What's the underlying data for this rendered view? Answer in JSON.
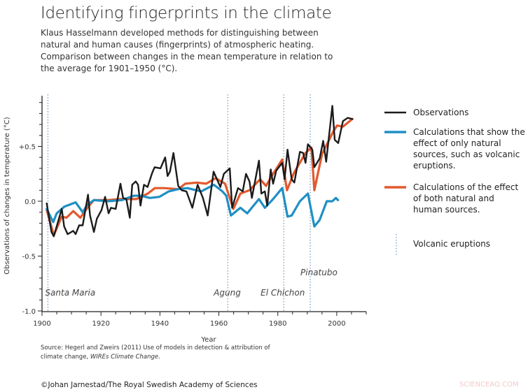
{
  "header": {
    "title": "Identifying fingerprints in the climate",
    "subtitle": "Klaus Hasselmann developed methods for distinguishing between natural and human causes (fingerprints) of atmospheric heating. Comparison between changes in the mean temperature in relation to the average for 1901–1950 (°C)."
  },
  "chart_data": {
    "type": "line",
    "title": "Identifying fingerprints in the climate",
    "xlabel": "Year",
    "ylabel": "Observations of changes in temperature (°C)",
    "xlim": [
      1900,
      2010
    ],
    "ylim": [
      -1.0,
      0.9
    ],
    "x_ticks": [
      1900,
      1920,
      1940,
      1960,
      1980,
      2000
    ],
    "x_tick_labels": [
      "1900",
      "1920",
      "1940",
      "1960",
      "1980",
      "2000"
    ],
    "y_ticks": [
      -1.0,
      -0.5,
      0.0,
      0.5
    ],
    "y_tick_labels": [
      "-1.0",
      "-0.5",
      "0.0",
      "+0.5"
    ],
    "grid": false,
    "legend_position": "right",
    "series": [
      {
        "name": "Observations",
        "color": "#1b1b1b",
        "x": [
          1901.6,
          1903.2,
          1904.0,
          1906.7,
          1907.5,
          1908.7,
          1910.6,
          1911.4,
          1912.6,
          1913.8,
          1915.6,
          1916.3,
          1917.6,
          1918.6,
          1920.2,
          1921.4,
          1922.6,
          1923.4,
          1925.0,
          1926.6,
          1927.5,
          1928.6,
          1929.8,
          1930.6,
          1931.8,
          1932.6,
          1933.4,
          1934.6,
          1935.8,
          1937.4,
          1938.2,
          1940.2,
          1941.8,
          1942.6,
          1943.4,
          1944.6,
          1946.2,
          1947.4,
          1949.0,
          1951.0,
          1952.8,
          1954.6,
          1956.2,
          1958.2,
          1960.5,
          1961.7,
          1963.7,
          1964.5,
          1966.5,
          1968.1,
          1969.2,
          1970.4,
          1971.2,
          1973.6,
          1974.4,
          1975.6,
          1976.4,
          1977.6,
          1978.4,
          1979.5,
          1981.5,
          1982.3,
          1983.3,
          1984.7,
          1985.6,
          1987.5,
          1988.6,
          1989.4,
          1990.2,
          1991.7,
          1992.4,
          1994.2,
          1995.4,
          1996.4,
          1998.5,
          1999.3,
          2000.5,
          2002.1,
          2003.7,
          2005.3
        ],
        "y": [
          -0.02,
          -0.28,
          -0.32,
          -0.07,
          -0.23,
          -0.3,
          -0.27,
          -0.3,
          -0.22,
          -0.22,
          0.06,
          -0.13,
          -0.28,
          -0.16,
          -0.08,
          0.04,
          -0.11,
          -0.06,
          -0.07,
          0.16,
          0.03,
          0.02,
          -0.15,
          0.15,
          0.18,
          0.15,
          -0.04,
          0.15,
          0.13,
          0.26,
          0.31,
          0.3,
          0.4,
          0.23,
          0.27,
          0.44,
          0.14,
          0.1,
          0.09,
          -0.06,
          0.15,
          0.03,
          -0.13,
          0.27,
          0.13,
          0.25,
          0.3,
          -0.06,
          0.12,
          0.09,
          0.25,
          0.18,
          0.03,
          0.37,
          0.07,
          0.09,
          -0.04,
          0.29,
          0.16,
          0.28,
          0.35,
          0.2,
          0.47,
          0.2,
          0.17,
          0.45,
          0.44,
          0.35,
          0.52,
          0.47,
          0.31,
          0.39,
          0.55,
          0.36,
          0.87,
          0.56,
          0.53,
          0.73,
          0.76,
          0.75
        ]
      },
      {
        "name": "Calculations that show the effect of only natural sources, such as volcanic eruptions.",
        "color": "#1f8fc4",
        "x": [
          1901.6,
          1903.8,
          1905.0,
          1907.5,
          1911.4,
          1913.8,
          1915.4,
          1917.6,
          1922.4,
          1927.1,
          1931.1,
          1933.5,
          1936.6,
          1939.8,
          1943.0,
          1946.2,
          1949.3,
          1954.0,
          1958.3,
          1961.2,
          1962.5,
          1964.1,
          1967.3,
          1969.6,
          1973.6,
          1975.6,
          1978.4,
          1981.5,
          1983.3,
          1984.7,
          1987.5,
          1990.2,
          1992.4,
          1994.2,
          1996.6,
          1998.5,
          1999.7,
          2000.4
        ],
        "y": [
          -0.07,
          -0.19,
          -0.11,
          -0.05,
          -0.01,
          -0.1,
          -0.03,
          0.01,
          0.0,
          0.01,
          0.05,
          0.05,
          0.03,
          0.04,
          0.09,
          0.11,
          0.12,
          0.09,
          0.15,
          0.09,
          0.05,
          -0.13,
          -0.06,
          -0.11,
          0.02,
          -0.06,
          0.02,
          0.12,
          -0.14,
          -0.13,
          0.0,
          0.07,
          -0.23,
          -0.17,
          0.0,
          0.0,
          0.03,
          0.01
        ]
      },
      {
        "name": "Calculations of the effect of both natural and human sources.",
        "color": "#e2592f",
        "x": [
          1901.6,
          1904.0,
          1906.7,
          1908.3,
          1910.6,
          1913.0,
          1915.4,
          1917.6,
          1922.4,
          1926.4,
          1932.0,
          1935.9,
          1938.3,
          1941.5,
          1946.2,
          1948.6,
          1952.6,
          1955.7,
          1958.9,
          1962.1,
          1964.9,
          1967.3,
          1970.4,
          1974.0,
          1976.0,
          1978.4,
          1981.5,
          1983.1,
          1985.5,
          1989.4,
          1991.4,
          1992.4,
          1995.0,
          1998.9,
          2000.1,
          2002.1,
          2005.3
        ],
        "y": [
          -0.08,
          -0.31,
          -0.14,
          -0.15,
          -0.09,
          -0.15,
          -0.06,
          0.01,
          0.01,
          0.02,
          0.02,
          0.07,
          0.12,
          0.12,
          0.11,
          0.16,
          0.17,
          0.16,
          0.21,
          0.16,
          -0.07,
          0.07,
          0.1,
          0.2,
          0.14,
          0.25,
          0.38,
          0.1,
          0.26,
          0.44,
          0.49,
          0.1,
          0.43,
          0.64,
          0.69,
          0.68,
          0.75
        ]
      }
    ],
    "volcanic_eruptions": {
      "legend_label": "Volcanic eruptions",
      "color": "#5b7fa6",
      "events": [
        {
          "name": "Santa Maria",
          "year": 1902
        },
        {
          "name": "Agung",
          "year": 1963
        },
        {
          "name": "El Chichon",
          "year": 1982
        },
        {
          "name": "Pinatubo",
          "year": 1991
        }
      ]
    }
  },
  "legend": {
    "observations": "Observations",
    "natural": "Calculations that show the effect of only natural sources, such as volcanic eruptions.",
    "combined": "Calculations of the effect of both natural and human sources.",
    "volcanic": "Volcanic eruptions"
  },
  "footer": {
    "source_prefix": "Source: Hegerl and Zweirs (2011) Use of models in detection & attribution of climate change, ",
    "source_journal": "WIREs Climate Change",
    "source_suffix": ".",
    "credit": "©Johan Jarnestad/The Royal Swedish Academy of Sciences",
    "watermark": "SCIENCEAQ.COM"
  }
}
